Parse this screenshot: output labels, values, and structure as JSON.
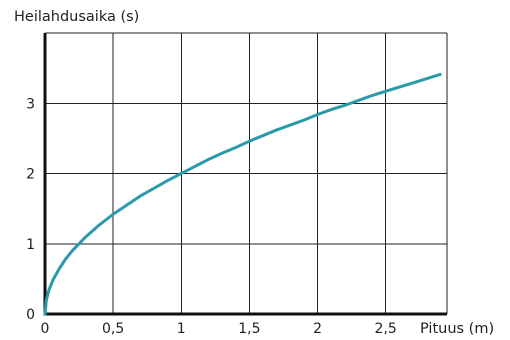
{
  "chart_data": {
    "type": "line",
    "title": "",
    "ylabel": "Heilahdusaika (s)",
    "xlabel": "Pituus (m)",
    "xlim": [
      0,
      2.95
    ],
    "ylim": [
      0,
      4
    ],
    "x_ticks": [
      "0",
      "0,5",
      "1",
      "1,5",
      "2",
      "2,5"
    ],
    "y_ticks": [
      "0",
      "1",
      "2",
      "3"
    ],
    "grid": true,
    "line_color": "#2a9aab",
    "series": [
      {
        "x": [
          0,
          0.01,
          0.03,
          0.06,
          0.1,
          0.15,
          0.2,
          0.3,
          0.4,
          0.5,
          0.6,
          0.7,
          0.8,
          0.9,
          1.0,
          1.1,
          1.2,
          1.3,
          1.4,
          1.5,
          1.6,
          1.7,
          1.8,
          1.9,
          2.0,
          2.1,
          2.2,
          2.3,
          2.4,
          2.5,
          2.6,
          2.7,
          2.8,
          2.9
        ],
        "y": [
          0,
          0.2,
          0.35,
          0.49,
          0.63,
          0.78,
          0.9,
          1.1,
          1.27,
          1.42,
          1.55,
          1.68,
          1.79,
          1.9,
          2.0,
          2.1,
          2.2,
          2.29,
          2.37,
          2.46,
          2.54,
          2.62,
          2.69,
          2.76,
          2.84,
          2.91,
          2.97,
          3.04,
          3.11,
          3.17,
          3.23,
          3.29,
          3.35,
          3.41
        ]
      }
    ]
  }
}
